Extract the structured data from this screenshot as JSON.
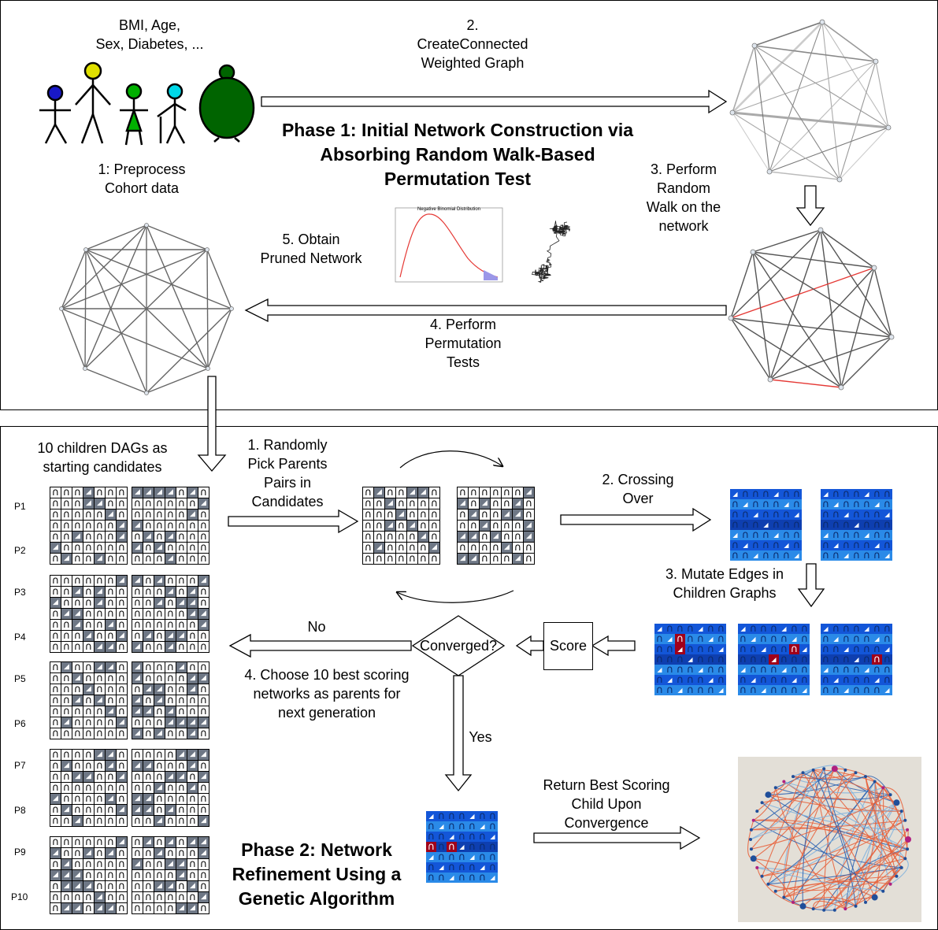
{
  "phase1": {
    "title": "Phase 1: Initial Network Construction via Absorbing Random Walk-Based Permutation Test",
    "attributes": "BMI, Age,\nSex, Diabetes, ...",
    "step1": "1: Preprocess\nCohort data",
    "step2": "2.\nCreateConnected\nWeighted Graph",
    "step3": "3. Perform\nRandom\nWalk on the\nnetwork",
    "step4": "4. Perform\nPermutation\nTests",
    "step5": "5. Obtain\nPruned Network",
    "plot_title": "Negative Binomial Distribution"
  },
  "phase2": {
    "title": "Phase 2: Network\nRefinement Using a\nGenetic Algorithm",
    "candidates_label": "10 children DAGs as\nstarting candidates",
    "step1": "1. Randomly\nPick Parents\nPairs in\nCandidates",
    "step2": "2. Crossing\nOver",
    "step3": "3. Mutate Edges in\nChildren Graphs",
    "step4": "4. Choose 10 best scoring\nnetworks as parents for\nnext generation",
    "score": "Score",
    "converged": "Converged?",
    "no": "No",
    "yes": "Yes",
    "return": "Return Best Scoring\nChild Upon\nConvergence",
    "parents": [
      "P1",
      "P2",
      "P3",
      "P4",
      "P5",
      "P6",
      "P7",
      "P8",
      "P9",
      "P10"
    ]
  },
  "colors": {
    "figure_blue": "#1818c8",
    "figure_yellow": "#e0e000",
    "figure_green": "#00b000",
    "figure_cyan": "#00d8e8",
    "figure_darkgreen": "#006400",
    "grid_gray": "#6e7785",
    "mutation_red": "#a0001a",
    "edge_red": "#e53935",
    "edge_blue": "#2a60b0"
  }
}
